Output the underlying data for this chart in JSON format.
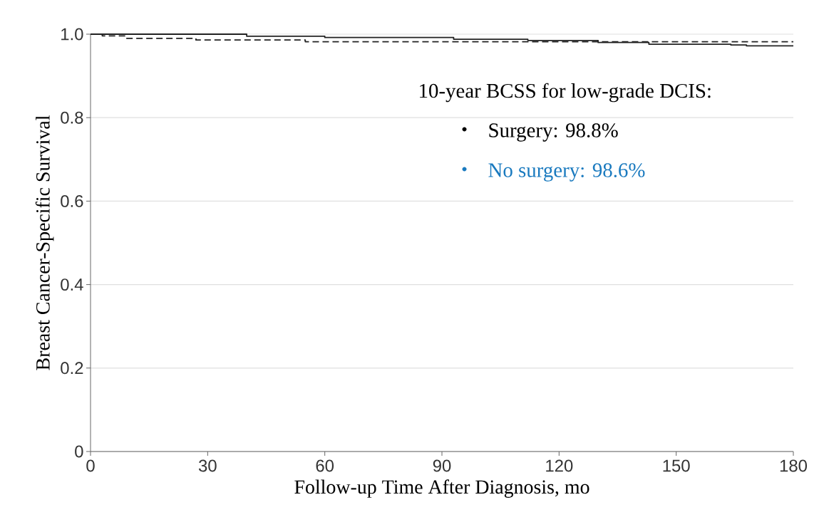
{
  "chart_data": {
    "type": "step",
    "xlabel": "Follow-up Time After Diagnosis, mo",
    "ylabel": "Breast Cancer-Specific Survival",
    "annotations": [
      "10-year BCSS for low-grade DCIS:",
      "Surgery: 98.8%",
      "No surgery: 98.6%"
    ],
    "series": [
      {
        "color": "#222222",
        "line_style": "solid",
        "x": [
          0,
          40,
          60,
          93,
          112,
          130,
          143,
          164,
          168,
          180
        ],
        "values": [
          1.0,
          0.995,
          0.992,
          0.988,
          0.985,
          0.98,
          0.976,
          0.974,
          0.972,
          0.972
        ]
      },
      {
        "color": "#222222",
        "line_style": "dashed",
        "x": [
          0,
          3,
          9,
          27,
          55,
          180
        ],
        "values": [
          1.0,
          0.996,
          0.99,
          0.986,
          0.982,
          0.982
        ]
      }
    ],
    "xlim": [
      0,
      180
    ],
    "ylim": [
      0,
      1.0
    ],
    "xticks": [
      0,
      30,
      60,
      90,
      120,
      150,
      180
    ],
    "yticks": [
      {
        "value": 0,
        "label": "0"
      },
      {
        "value": 0.2,
        "label": "0.2"
      },
      {
        "value": 0.4,
        "label": "0.4"
      },
      {
        "value": 0.6,
        "label": "0.6"
      },
      {
        "value": 0.8,
        "label": "0.8"
      },
      {
        "value": 1.0,
        "label": "1.0"
      }
    ],
    "grid": "y",
    "marker": "none"
  }
}
